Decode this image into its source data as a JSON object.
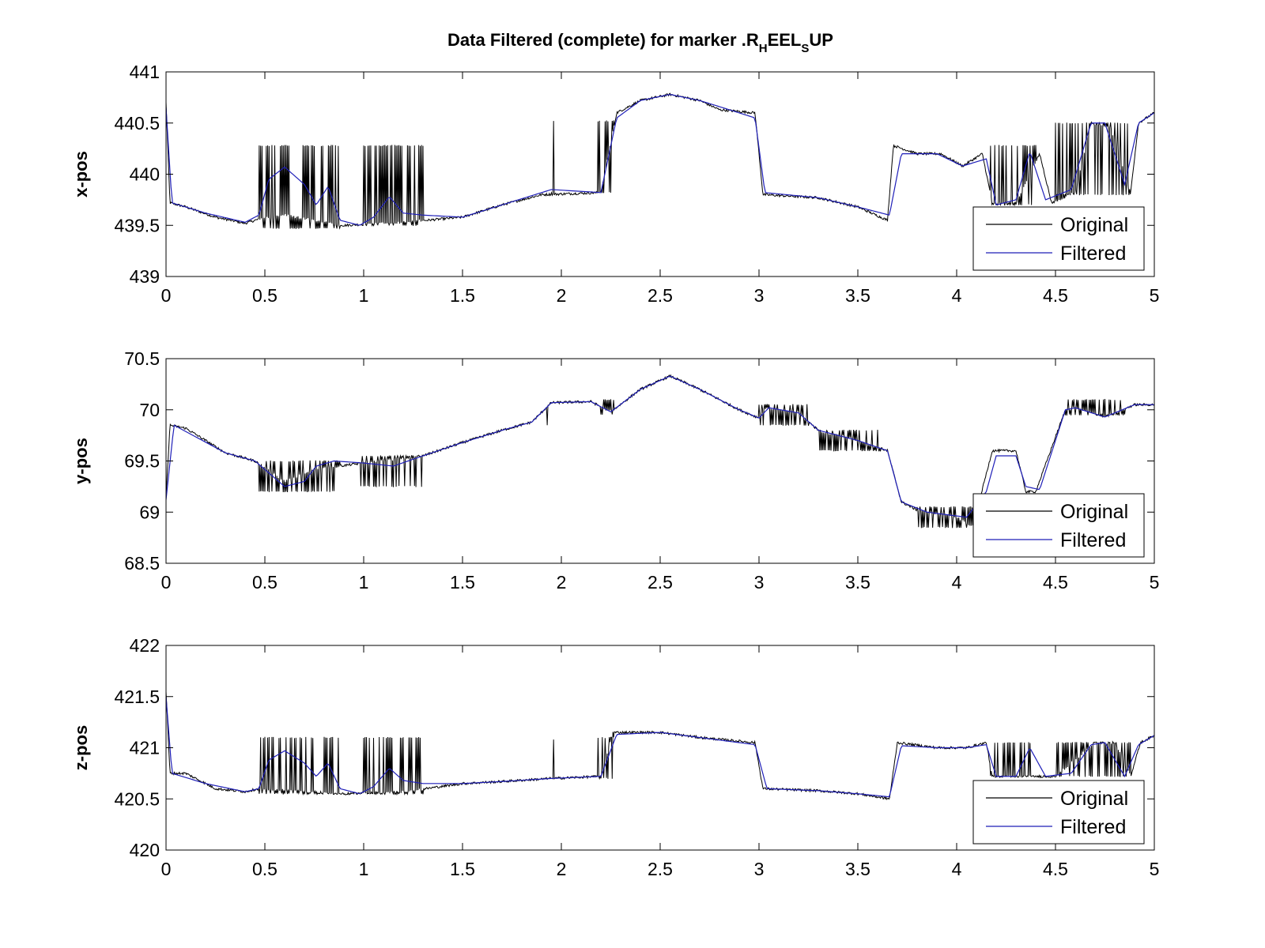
{
  "figure": {
    "title": {
      "parts": [
        {
          "text": "Data Filtered (complete) for marker .R",
          "sub": false
        },
        {
          "text": "H",
          "sub": true
        },
        {
          "text": "EEL",
          "sub": false
        },
        {
          "text": "S",
          "sub": true
        },
        {
          "text": "UP",
          "sub": false
        }
      ]
    }
  },
  "colors": {
    "original": "#000000",
    "filtered": "#1f1fb8",
    "axes": "#000000",
    "background": "#ffffff"
  },
  "chart_data": [
    {
      "type": "line",
      "ylabel": "x-pos",
      "xlim": [
        0,
        5
      ],
      "ylim": [
        439,
        441
      ],
      "xticks": [
        0,
        0.5,
        1,
        1.5,
        2,
        2.5,
        3,
        3.5,
        4,
        4.5,
        5
      ],
      "xtick_labels": [
        "0",
        "0.5",
        "1",
        "1.5",
        "2",
        "2.5",
        "3",
        "3.5",
        "4",
        "4.5",
        "5"
      ],
      "yticks": [
        439,
        439.5,
        440,
        440.5,
        441
      ],
      "ytick_labels": [
        "439",
        "439.5",
        "440",
        "440.5",
        "441"
      ],
      "legend": {
        "position": "bottom-right",
        "entries": [
          "Original",
          "Filtered"
        ]
      },
      "baseline": [
        [
          0,
          440.7
        ],
        [
          0.02,
          439.72
        ],
        [
          0.1,
          439.68
        ],
        [
          0.25,
          439.58
        ],
        [
          0.4,
          439.52
        ],
        [
          0.47,
          439.56
        ],
        [
          0.6,
          439.6
        ],
        [
          0.9,
          439.5
        ],
        [
          1.2,
          439.53
        ],
        [
          1.5,
          439.58
        ],
        [
          1.7,
          439.7
        ],
        [
          1.9,
          439.8
        ],
        [
          2.2,
          439.82
        ],
        [
          2.28,
          440.6
        ],
        [
          2.4,
          440.72
        ],
        [
          2.55,
          440.78
        ],
        [
          2.7,
          440.72
        ],
        [
          2.8,
          440.63
        ],
        [
          2.98,
          440.6
        ],
        [
          3.02,
          439.8
        ],
        [
          3.3,
          439.77
        ],
        [
          3.5,
          439.68
        ],
        [
          3.65,
          439.55
        ],
        [
          3.68,
          440.28
        ],
        [
          3.8,
          440.2
        ],
        [
          3.92,
          440.2
        ],
        [
          4.03,
          440.08
        ],
        [
          4.13,
          440.2
        ],
        [
          4.18,
          439.72
        ],
        [
          4.3,
          439.72
        ],
        [
          4.42,
          440.2
        ],
        [
          4.48,
          439.72
        ],
        [
          4.6,
          439.82
        ],
        [
          4.68,
          440.5
        ],
        [
          4.78,
          440.45
        ],
        [
          4.88,
          439.82
        ],
        [
          4.92,
          440.5
        ],
        [
          5.0,
          440.6
        ]
      ],
      "filtered": [
        [
          0,
          440.65
        ],
        [
          0.03,
          439.72
        ],
        [
          0.2,
          439.62
        ],
        [
          0.4,
          439.53
        ],
        [
          0.47,
          439.6
        ],
        [
          0.52,
          439.95
        ],
        [
          0.6,
          440.07
        ],
        [
          0.7,
          439.9
        ],
        [
          0.76,
          439.7
        ],
        [
          0.82,
          439.88
        ],
        [
          0.88,
          439.55
        ],
        [
          0.98,
          439.5
        ],
        [
          1.05,
          439.58
        ],
        [
          1.13,
          439.78
        ],
        [
          1.2,
          439.62
        ],
        [
          1.3,
          439.6
        ],
        [
          1.5,
          439.58
        ],
        [
          1.7,
          439.7
        ],
        [
          1.95,
          439.85
        ],
        [
          2.2,
          439.82
        ],
        [
          2.28,
          440.55
        ],
        [
          2.4,
          440.72
        ],
        [
          2.55,
          440.78
        ],
        [
          2.7,
          440.72
        ],
        [
          2.85,
          440.63
        ],
        [
          2.98,
          440.55
        ],
        [
          3.03,
          439.82
        ],
        [
          3.3,
          439.77
        ],
        [
          3.5,
          439.68
        ],
        [
          3.66,
          439.6
        ],
        [
          3.72,
          440.2
        ],
        [
          3.9,
          440.2
        ],
        [
          4.03,
          440.08
        ],
        [
          4.15,
          440.15
        ],
        [
          4.2,
          439.7
        ],
        [
          4.3,
          439.75
        ],
        [
          4.37,
          440.22
        ],
        [
          4.45,
          439.75
        ],
        [
          4.58,
          439.85
        ],
        [
          4.68,
          440.5
        ],
        [
          4.75,
          440.5
        ],
        [
          4.85,
          439.9
        ],
        [
          4.92,
          440.5
        ],
        [
          5.0,
          440.6
        ]
      ],
      "spike_intervals": [
        [
          0.47,
          0.88,
          440.28,
          439.47
        ],
        [
          1.0,
          1.3,
          440.28,
          439.5
        ],
        [
          2.18,
          2.27,
          440.52,
          439.82
        ],
        [
          4.17,
          4.4,
          440.28,
          439.7
        ],
        [
          4.5,
          4.88,
          440.5,
          439.8
        ]
      ],
      "single_spikes": [
        [
          1.96,
          440.52
        ],
        [
          1.95,
          439.82
        ]
      ]
    },
    {
      "type": "line",
      "ylabel": "y-pos",
      "xlim": [
        0,
        5
      ],
      "ylim": [
        68.5,
        70.5
      ],
      "xticks": [
        0,
        0.5,
        1,
        1.5,
        2,
        2.5,
        3,
        3.5,
        4,
        4.5,
        5
      ],
      "xtick_labels": [
        "0",
        "0.5",
        "1",
        "1.5",
        "2",
        "2.5",
        "3",
        "3.5",
        "4",
        "4.5",
        "5"
      ],
      "yticks": [
        68.5,
        69,
        69.5,
        70,
        70.5
      ],
      "ytick_labels": [
        "68.5",
        "69",
        "69.5",
        "70",
        "70.5"
      ],
      "legend": {
        "position": "bottom-right",
        "entries": [
          "Original",
          "Filtered"
        ]
      },
      "baseline": [
        [
          0,
          69.15
        ],
        [
          0.02,
          69.85
        ],
        [
          0.1,
          69.82
        ],
        [
          0.3,
          69.58
        ],
        [
          0.45,
          69.5
        ],
        [
          0.6,
          69.3
        ],
        [
          0.75,
          69.42
        ],
        [
          1.0,
          69.48
        ],
        [
          1.3,
          69.55
        ],
        [
          1.5,
          69.68
        ],
        [
          1.7,
          69.8
        ],
        [
          1.85,
          69.88
        ],
        [
          1.95,
          70.07
        ],
        [
          2.15,
          70.08
        ],
        [
          2.25,
          69.98
        ],
        [
          2.4,
          70.2
        ],
        [
          2.55,
          70.33
        ],
        [
          2.7,
          70.2
        ],
        [
          2.9,
          70.0
        ],
        [
          3.0,
          69.92
        ],
        [
          3.02,
          70.02
        ],
        [
          3.2,
          69.97
        ],
        [
          3.3,
          69.8
        ],
        [
          3.5,
          69.7
        ],
        [
          3.65,
          69.6
        ],
        [
          3.72,
          69.1
        ],
        [
          3.8,
          69.02
        ],
        [
          4.0,
          68.95
        ],
        [
          4.08,
          68.85
        ],
        [
          4.18,
          69.6
        ],
        [
          4.3,
          69.6
        ],
        [
          4.35,
          69.2
        ],
        [
          4.4,
          69.2
        ],
        [
          4.55,
          70.0
        ],
        [
          4.6,
          70.02
        ],
        [
          4.75,
          69.93
        ],
        [
          4.9,
          70.05
        ],
        [
          5.0,
          70.05
        ]
      ],
      "filtered": [
        [
          0,
          69.12
        ],
        [
          0.04,
          69.85
        ],
        [
          0.3,
          69.58
        ],
        [
          0.45,
          69.5
        ],
        [
          0.6,
          69.25
        ],
        [
          0.7,
          69.3
        ],
        [
          0.76,
          69.45
        ],
        [
          0.85,
          69.5
        ],
        [
          1.0,
          69.48
        ],
        [
          1.15,
          69.45
        ],
        [
          1.3,
          69.55
        ],
        [
          1.5,
          69.68
        ],
        [
          1.7,
          69.8
        ],
        [
          1.85,
          69.88
        ],
        [
          1.95,
          70.07
        ],
        [
          2.15,
          70.08
        ],
        [
          2.25,
          69.98
        ],
        [
          2.4,
          70.2
        ],
        [
          2.55,
          70.33
        ],
        [
          2.7,
          70.2
        ],
        [
          2.9,
          70.0
        ],
        [
          3.0,
          69.92
        ],
        [
          3.05,
          70.02
        ],
        [
          3.2,
          69.97
        ],
        [
          3.3,
          69.8
        ],
        [
          3.5,
          69.7
        ],
        [
          3.65,
          69.6
        ],
        [
          3.72,
          69.1
        ],
        [
          3.85,
          69.0
        ],
        [
          4.05,
          68.95
        ],
        [
          4.15,
          69.2
        ],
        [
          4.2,
          69.55
        ],
        [
          4.3,
          69.55
        ],
        [
          4.35,
          69.25
        ],
        [
          4.42,
          69.22
        ],
        [
          4.55,
          70.0
        ],
        [
          4.6,
          70.02
        ],
        [
          4.75,
          69.93
        ],
        [
          4.9,
          70.05
        ],
        [
          5.0,
          70.05
        ]
      ],
      "spike_intervals": [
        [
          0.47,
          0.88,
          69.2,
          69.5
        ],
        [
          0.98,
          1.3,
          69.25,
          69.55
        ],
        [
          2.2,
          2.27,
          69.95,
          70.1
        ],
        [
          3.0,
          3.25,
          69.85,
          70.05
        ],
        [
          3.3,
          3.62,
          69.6,
          69.8
        ],
        [
          3.8,
          4.08,
          68.85,
          69.05
        ],
        [
          4.55,
          4.85,
          69.95,
          70.1
        ]
      ],
      "single_spikes": [
        [
          1.93,
          69.85
        ]
      ]
    },
    {
      "type": "line",
      "ylabel": "z-pos",
      "xlim": [
        0,
        5
      ],
      "ylim": [
        420,
        422
      ],
      "xticks": [
        0,
        0.5,
        1,
        1.5,
        2,
        2.5,
        3,
        3.5,
        4,
        4.5,
        5
      ],
      "xtick_labels": [
        "0",
        "0.5",
        "1",
        "1.5",
        "2",
        "2.5",
        "3",
        "3.5",
        "4",
        "4.5",
        "5"
      ],
      "yticks": [
        420,
        420.5,
        421,
        421.5,
        422
      ],
      "ytick_labels": [
        "420",
        "420.5",
        "421",
        "421.5",
        "422"
      ],
      "legend": {
        "position": "bottom-right",
        "entries": [
          "Original",
          "Filtered"
        ]
      },
      "baseline": [
        [
          0,
          421.55
        ],
        [
          0.02,
          420.75
        ],
        [
          0.1,
          420.75
        ],
        [
          0.25,
          420.6
        ],
        [
          0.4,
          420.57
        ],
        [
          0.47,
          420.6
        ],
        [
          0.9,
          420.55
        ],
        [
          1.2,
          420.57
        ],
        [
          1.5,
          420.65
        ],
        [
          1.7,
          420.67
        ],
        [
          1.95,
          420.7
        ],
        [
          2.2,
          420.72
        ],
        [
          2.26,
          421.15
        ],
        [
          2.5,
          421.15
        ],
        [
          2.7,
          421.1
        ],
        [
          2.98,
          421.05
        ],
        [
          3.02,
          420.6
        ],
        [
          3.3,
          420.58
        ],
        [
          3.5,
          420.55
        ],
        [
          3.66,
          420.5
        ],
        [
          3.7,
          421.05
        ],
        [
          3.9,
          421.0
        ],
        [
          4.05,
          421.0
        ],
        [
          4.15,
          421.05
        ],
        [
          4.18,
          420.72
        ],
        [
          4.4,
          420.72
        ],
        [
          4.5,
          420.72
        ],
        [
          4.7,
          421.05
        ],
        [
          4.8,
          421.05
        ],
        [
          4.88,
          420.72
        ],
        [
          4.93,
          421.05
        ],
        [
          5.0,
          421.12
        ]
      ],
      "filtered": [
        [
          0,
          421.5
        ],
        [
          0.03,
          420.75
        ],
        [
          0.2,
          420.65
        ],
        [
          0.4,
          420.57
        ],
        [
          0.47,
          420.6
        ],
        [
          0.52,
          420.88
        ],
        [
          0.6,
          420.97
        ],
        [
          0.7,
          420.85
        ],
        [
          0.76,
          420.72
        ],
        [
          0.82,
          420.85
        ],
        [
          0.88,
          420.6
        ],
        [
          0.98,
          420.55
        ],
        [
          1.05,
          420.62
        ],
        [
          1.13,
          420.8
        ],
        [
          1.2,
          420.68
        ],
        [
          1.3,
          420.65
        ],
        [
          1.5,
          420.65
        ],
        [
          1.7,
          420.67
        ],
        [
          1.95,
          420.7
        ],
        [
          2.2,
          420.72
        ],
        [
          2.28,
          421.13
        ],
        [
          2.5,
          421.15
        ],
        [
          2.7,
          421.1
        ],
        [
          2.98,
          421.03
        ],
        [
          3.04,
          420.6
        ],
        [
          3.3,
          420.58
        ],
        [
          3.5,
          420.55
        ],
        [
          3.66,
          420.52
        ],
        [
          3.72,
          421.02
        ],
        [
          3.9,
          421.0
        ],
        [
          4.05,
          421.0
        ],
        [
          4.15,
          421.03
        ],
        [
          4.2,
          420.72
        ],
        [
          4.3,
          420.72
        ],
        [
          4.37,
          421.0
        ],
        [
          4.45,
          420.72
        ],
        [
          4.58,
          420.75
        ],
        [
          4.68,
          421.03
        ],
        [
          4.75,
          421.05
        ],
        [
          4.85,
          420.72
        ],
        [
          4.92,
          421.03
        ],
        [
          5.0,
          421.12
        ]
      ],
      "spike_intervals": [
        [
          0.47,
          0.88,
          421.1,
          420.55
        ],
        [
          1.0,
          1.3,
          421.1,
          420.55
        ],
        [
          2.18,
          2.27,
          421.1,
          420.7
        ],
        [
          4.17,
          4.4,
          421.05,
          420.72
        ],
        [
          4.5,
          4.88,
          421.05,
          420.72
        ]
      ],
      "single_spikes": [
        [
          1.96,
          421.08
        ],
        [
          1.95,
          420.7
        ]
      ]
    }
  ]
}
